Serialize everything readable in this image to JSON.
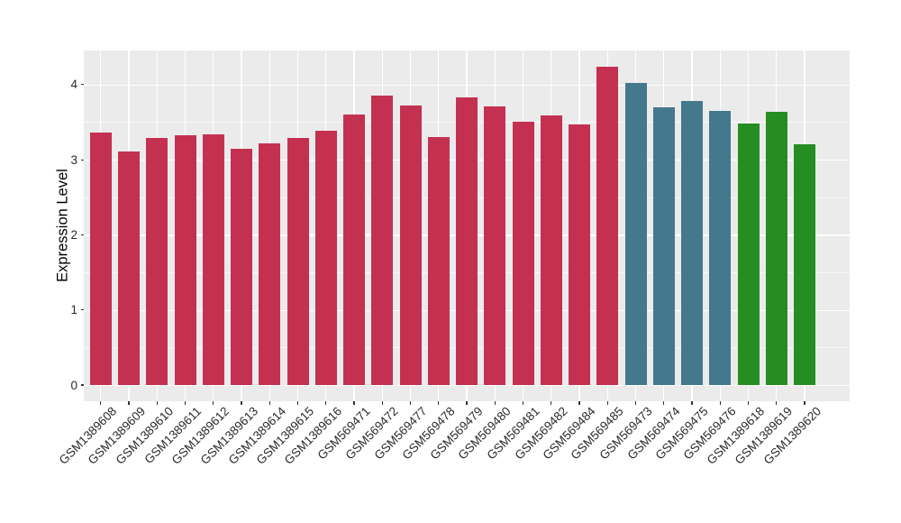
{
  "chart_data": {
    "type": "bar",
    "title": "",
    "xlabel": "",
    "ylabel": "Expression Level",
    "categories": [
      "GSM1389608",
      "GSM1389609",
      "GSM1389610",
      "GSM1389611",
      "GSM1389612",
      "GSM1389613",
      "GSM1389614",
      "GSM1389615",
      "GSM1389616",
      "GSM569471",
      "GSM569472",
      "GSM569477",
      "GSM569478",
      "GSM569479",
      "GSM569480",
      "GSM569481",
      "GSM569482",
      "GSM569484",
      "GSM569485",
      "GSM569473",
      "GSM569474",
      "GSM569475",
      "GSM569476",
      "GSM1389618",
      "GSM1389619",
      "GSM1389620"
    ],
    "values": [
      3.36,
      3.11,
      3.29,
      3.32,
      3.34,
      3.15,
      3.22,
      3.29,
      3.39,
      3.6,
      3.85,
      3.72,
      3.3,
      3.83,
      3.71,
      3.5,
      3.59,
      3.47,
      4.24,
      4.02,
      3.7,
      3.78,
      3.65,
      3.48,
      3.64,
      3.21
    ],
    "bar_groups": [
      "red",
      "red",
      "red",
      "red",
      "red",
      "red",
      "red",
      "red",
      "red",
      "red",
      "red",
      "red",
      "red",
      "red",
      "red",
      "red",
      "red",
      "red",
      "red",
      "teal",
      "teal",
      "teal",
      "teal",
      "green",
      "green",
      "green"
    ],
    "palette": {
      "red": "#C43150",
      "teal": "#44788C",
      "green": "#268D22"
    },
    "y_ticks_major": [
      0,
      1,
      2,
      3,
      4
    ],
    "y_ticks_minor": [
      0.5,
      1.5,
      2.5,
      3.5
    ],
    "ylim": [
      0,
      4.45
    ],
    "panel_bg": "#EBEBEB",
    "grid_color": "#FFFFFF",
    "legend": "none",
    "grid": "on"
  }
}
